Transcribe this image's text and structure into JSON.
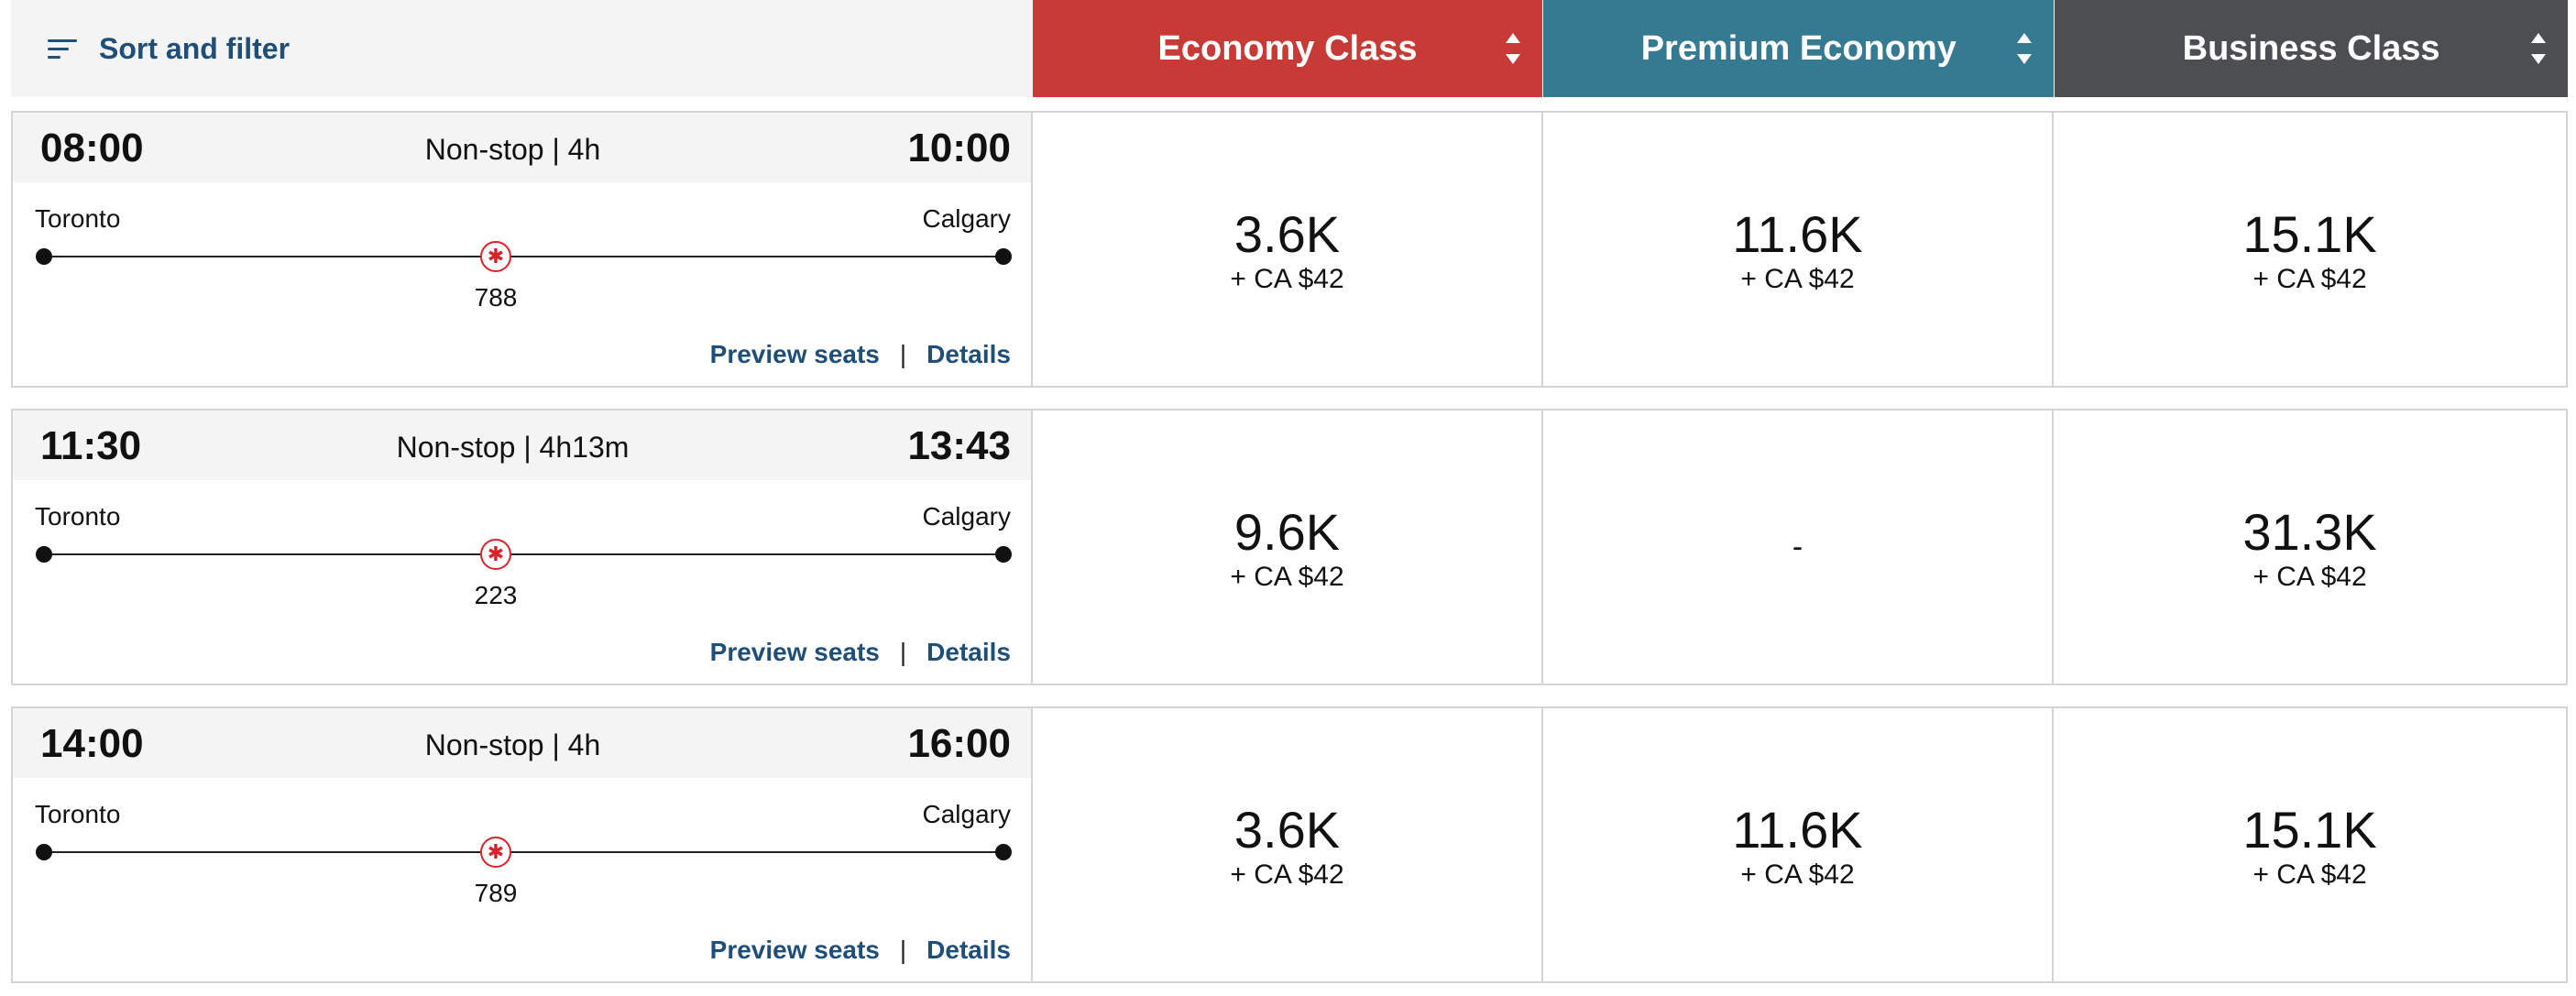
{
  "header": {
    "sort_label": "Sort and filter",
    "icons": {
      "sort": "sort-filter-icon",
      "column_sort": "sort-arrows-icon"
    },
    "cabins": [
      {
        "label": "Economy Class",
        "color": "#c73a36"
      },
      {
        "label": "Premium Economy",
        "color": "#357a91"
      },
      {
        "label": "Business Class",
        "color": "#4c4e52"
      }
    ]
  },
  "links": {
    "preview": "Preview seats",
    "separator": "|",
    "details": "Details"
  },
  "flights": [
    {
      "depart": "08:00",
      "arrive": "10:00",
      "summary": "Non-stop | 4h",
      "origin": "Toronto",
      "destination": "Calgary",
      "aircraft": "788",
      "fares": [
        {
          "points": "3.6K",
          "fees": "+ CA $42"
        },
        {
          "points": "11.6K",
          "fees": "+ CA $42"
        },
        {
          "points": "15.1K",
          "fees": "+ CA $42"
        }
      ]
    },
    {
      "depart": "11:30",
      "arrive": "13:43",
      "summary": "Non-stop | 4h13m",
      "origin": "Toronto",
      "destination": "Calgary",
      "aircraft": "223",
      "fares": [
        {
          "points": "9.6K",
          "fees": "+ CA $42"
        },
        {
          "unavailable": "-"
        },
        {
          "points": "31.3K",
          "fees": "+ CA $42"
        }
      ]
    },
    {
      "depart": "14:00",
      "arrive": "16:00",
      "summary": "Non-stop | 4h",
      "origin": "Toronto",
      "destination": "Calgary",
      "aircraft": "789",
      "fares": [
        {
          "points": "3.6K",
          "fees": "+ CA $42"
        },
        {
          "points": "11.6K",
          "fees": "+ CA $42"
        },
        {
          "points": "15.1K",
          "fees": "+ CA $42"
        }
      ]
    }
  ],
  "airline_logo": "maple-leaf-icon"
}
